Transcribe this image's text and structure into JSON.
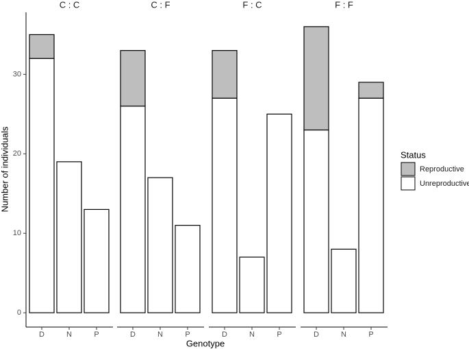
{
  "chart_data": {
    "type": "bar",
    "stacked": true,
    "x_label": "Genotype",
    "y_label": "Number of individuals",
    "legend_title": "Status",
    "categories": [
      "D",
      "N",
      "P"
    ],
    "ylim": [
      -1.8,
      37.8
    ],
    "yticks": [
      0,
      10,
      20,
      30
    ],
    "series": [
      {
        "name": "Reproductive",
        "color": "#bebebe"
      },
      {
        "name": "Unreproductive",
        "color": "#ffffff"
      }
    ],
    "facets": [
      {
        "title": "C : C",
        "values": [
          [
            3,
            null,
            null
          ],
          [
            32,
            19,
            13
          ]
        ]
      },
      {
        "title": "C : F",
        "values": [
          [
            7,
            null,
            null
          ],
          [
            26,
            17,
            11
          ]
        ]
      },
      {
        "title": "F : C",
        "values": [
          [
            6,
            null,
            null
          ],
          [
            27,
            7,
            25
          ]
        ]
      },
      {
        "title": "F : F",
        "values": [
          [
            13,
            null,
            2
          ],
          [
            23,
            8,
            27
          ]
        ]
      }
    ]
  }
}
